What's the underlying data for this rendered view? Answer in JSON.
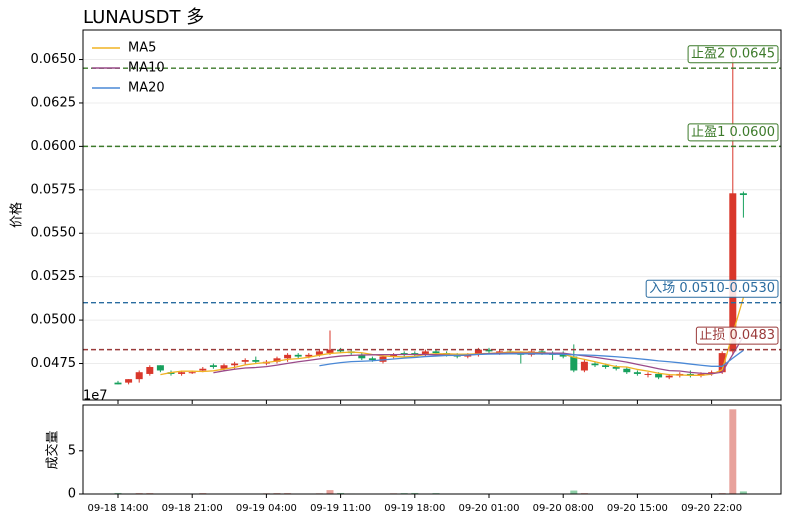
{
  "chart_data": [
    {
      "type": "candlestick",
      "title": "LUNAUSDT 多",
      "ylabel": "价格",
      "x": [
        "09-18 14:00",
        "09-18 15:00",
        "09-18 16:00",
        "09-18 17:00",
        "09-18 18:00",
        "09-18 19:00",
        "09-18 20:00",
        "09-18 21:00",
        "09-18 22:00",
        "09-18 23:00",
        "09-19 00:00",
        "09-19 01:00",
        "09-19 02:00",
        "09-19 03:00",
        "09-19 04:00",
        "09-19 05:00",
        "09-19 06:00",
        "09-19 07:00",
        "09-19 08:00",
        "09-19 09:00",
        "09-19 10:00",
        "09-19 11:00",
        "09-19 12:00",
        "09-19 13:00",
        "09-19 14:00",
        "09-19 15:00",
        "09-19 16:00",
        "09-19 17:00",
        "09-19 18:00",
        "09-19 19:00",
        "09-19 20:00",
        "09-19 21:00",
        "09-19 22:00",
        "09-19 23:00",
        "09-20 00:00",
        "09-20 01:00",
        "09-20 02:00",
        "09-20 03:00",
        "09-20 04:00",
        "09-20 05:00",
        "09-20 06:00",
        "09-20 07:00",
        "09-20 08:00",
        "09-20 09:00",
        "09-20 10:00",
        "09-20 11:00",
        "09-20 12:00",
        "09-20 13:00",
        "09-20 14:00",
        "09-20 15:00",
        "09-20 16:00",
        "09-20 17:00",
        "09-20 18:00",
        "09-20 19:00",
        "09-20 20:00",
        "09-20 21:00",
        "09-20 22:00",
        "09-20 23:00",
        "09-21 00:00",
        "09-21 01:00"
      ],
      "open": [
        0.0464,
        0.0464,
        0.0466,
        0.0469,
        0.0474,
        0.047,
        0.0469,
        0.047,
        0.0471,
        0.0474,
        0.0472,
        0.0474,
        0.0476,
        0.0477,
        0.0475,
        0.0476,
        0.0478,
        0.048,
        0.0479,
        0.048,
        0.0481,
        0.0483,
        0.0482,
        0.048,
        0.0478,
        0.0476,
        0.0479,
        0.0481,
        0.0481,
        0.048,
        0.0482,
        0.0481,
        0.048,
        0.0479,
        0.048,
        0.0483,
        0.0481,
        0.0482,
        0.0481,
        0.048,
        0.0482,
        0.0481,
        0.0481,
        0.0479,
        0.0471,
        0.0475,
        0.0474,
        0.0473,
        0.0472,
        0.047,
        0.0469,
        0.0469,
        0.0467,
        0.0468,
        0.0469,
        0.0468,
        0.0469,
        0.047,
        0.0482,
        0.0573
      ],
      "high": [
        0.0465,
        0.0466,
        0.0471,
        0.0474,
        0.0474,
        0.0471,
        0.0471,
        0.0471,
        0.0473,
        0.0475,
        0.0475,
        0.0476,
        0.0478,
        0.0479,
        0.0477,
        0.0479,
        0.0481,
        0.0481,
        0.0481,
        0.0483,
        0.0494,
        0.0484,
        0.0483,
        0.0481,
        0.0479,
        0.048,
        0.0481,
        0.0482,
        0.0482,
        0.0483,
        0.0483,
        0.0482,
        0.0481,
        0.0481,
        0.0484,
        0.0484,
        0.0483,
        0.0483,
        0.0482,
        0.0483,
        0.0483,
        0.0482,
        0.0482,
        0.0486,
        0.0477,
        0.0476,
        0.0475,
        0.0474,
        0.0473,
        0.0471,
        0.047,
        0.047,
        0.0469,
        0.047,
        0.0471,
        0.047,
        0.0471,
        0.0482,
        0.0657,
        0.0574
      ],
      "low": [
        0.0463,
        0.0463,
        0.0464,
        0.0468,
        0.047,
        0.0468,
        0.0468,
        0.0469,
        0.047,
        0.0472,
        0.0471,
        0.0472,
        0.0474,
        0.0475,
        0.0474,
        0.0475,
        0.0476,
        0.0478,
        0.0478,
        0.0479,
        0.048,
        0.0481,
        0.048,
        0.0477,
        0.0476,
        0.0475,
        0.0478,
        0.0479,
        0.0479,
        0.0479,
        0.048,
        0.0479,
        0.0478,
        0.0478,
        0.0479,
        0.0481,
        0.048,
        0.0481,
        0.0475,
        0.0479,
        0.048,
        0.0477,
        0.0478,
        0.047,
        0.047,
        0.0473,
        0.0472,
        0.0471,
        0.0469,
        0.0468,
        0.0467,
        0.0466,
        0.0466,
        0.0467,
        0.0467,
        0.0467,
        0.0468,
        0.0469,
        0.048,
        0.0559
      ],
      "close": [
        0.0463,
        0.0466,
        0.047,
        0.0473,
        0.0471,
        0.0469,
        0.047,
        0.047,
        0.0472,
        0.0473,
        0.0474,
        0.0475,
        0.0477,
        0.0476,
        0.0476,
        0.0478,
        0.048,
        0.0479,
        0.048,
        0.0482,
        0.0483,
        0.0482,
        0.0481,
        0.0478,
        0.0477,
        0.0479,
        0.048,
        0.048,
        0.048,
        0.0482,
        0.0481,
        0.048,
        0.0479,
        0.048,
        0.0483,
        0.0482,
        0.0482,
        0.0481,
        0.048,
        0.0482,
        0.0481,
        0.048,
        0.0479,
        0.0471,
        0.0476,
        0.0474,
        0.0473,
        0.0472,
        0.047,
        0.0469,
        0.0469,
        0.0467,
        0.0468,
        0.0469,
        0.0468,
        0.0469,
        0.047,
        0.0481,
        0.0573,
        0.0572
      ],
      "up_color": "#d9372b",
      "down_color": "#17a05d",
      "series": [
        {
          "name": "MA5",
          "color": "#f0b323",
          "values": [
            null,
            null,
            null,
            null,
            0.04686,
            0.04698,
            0.04706,
            0.04706,
            0.04704,
            0.04708,
            0.04718,
            0.04728,
            0.04742,
            0.0475,
            0.04756,
            0.04764,
            0.04774,
            0.04778,
            0.04786,
            0.04798,
            0.04808,
            0.04812,
            0.04816,
            0.04812,
            0.04802,
            0.04794,
            0.0479,
            0.04788,
            0.04792,
            0.04802,
            0.04806,
            0.04806,
            0.04804,
            0.04804,
            0.04806,
            0.04808,
            0.04812,
            0.04816,
            0.04816,
            0.04814,
            0.04812,
            0.04808,
            0.04804,
            0.04786,
            0.04774,
            0.0476,
            0.04746,
            0.04732,
            0.0473,
            0.04716,
            0.04706,
            0.04694,
            0.04686,
            0.04684,
            0.04682,
            0.04682,
            0.04688,
            0.04714,
            0.04922,
            0.0513
          ]
        },
        {
          "name": "MA10",
          "color": "#9a4a8a",
          "values": [
            null,
            null,
            null,
            null,
            null,
            null,
            null,
            null,
            null,
            0.04697,
            0.04708,
            0.04717,
            0.04724,
            0.04727,
            0.04732,
            0.04741,
            0.04751,
            0.0476,
            0.04768,
            0.04777,
            0.04786,
            0.04793,
            0.04797,
            0.04799,
            0.048,
            0.04801,
            0.04801,
            0.04802,
            0.04802,
            0.04802,
            0.048,
            0.04798,
            0.04796,
            0.04798,
            0.04804,
            0.04807,
            0.04809,
            0.0481,
            0.0481,
            0.0481,
            0.0481,
            0.0481,
            0.0481,
            0.04801,
            0.04794,
            0.04786,
            0.04777,
            0.04768,
            0.04758,
            0.04745,
            0.04733,
            0.0472,
            0.04709,
            0.04707,
            0.04699,
            0.04694,
            0.04691,
            0.047,
            0.04803,
            0.04906
          ]
        },
        {
          "name": "MA20",
          "color": "#4a88d6",
          "values": [
            null,
            null,
            null,
            null,
            null,
            null,
            null,
            null,
            null,
            null,
            null,
            null,
            null,
            null,
            null,
            null,
            null,
            null,
            null,
            0.04737,
            0.04747,
            0.04755,
            0.04761,
            0.04763,
            0.04766,
            0.04771,
            0.04776,
            0.04781,
            0.04785,
            0.0479,
            0.04793,
            0.04796,
            0.04797,
            0.04799,
            0.04802,
            0.04804,
            0.04805,
            0.04806,
            0.04806,
            0.04806,
            0.04805,
            0.04804,
            0.04803,
            0.048,
            0.04799,
            0.04797,
            0.04793,
            0.04789,
            0.04784,
            0.04778,
            0.04772,
            0.04765,
            0.0476,
            0.04754,
            0.04747,
            0.0474,
            0.04734,
            0.04734,
            0.04781,
            0.04826
          ]
        }
      ],
      "ylim": [
        0.0454,
        0.0667
      ],
      "yticks": [
        0.0475,
        {
          "value": 0.05,
          "label": "0.0500"
        },
        0.0525,
        {
          "value": 0.055,
          "label": "0.0550"
        },
        0.0575,
        {
          "value": 0.06,
          "label": "0.0600"
        },
        0.0625,
        {
          "value": 0.065,
          "label": "0.0650"
        }
      ],
      "grid": true,
      "legend": "upper left",
      "levels": [
        {
          "label": "止盈2 0.0645",
          "value": 0.0645,
          "color": "#3c7a2a"
        },
        {
          "label": "止盈1 0.0600",
          "value": 0.06,
          "color": "#3c7a2a"
        },
        {
          "label": "入场 0.0510-0.0530",
          "value": 0.051,
          "color": "#2a6ca0"
        },
        {
          "label": "止损 0.0483",
          "value": 0.0483,
          "color": "#9a3a3a"
        }
      ]
    },
    {
      "type": "bar",
      "ylabel": "成交量",
      "offset_label": "1e7",
      "values": [
        0.12,
        0.05,
        0.1,
        0.1,
        0.04,
        0.03,
        0.04,
        0.03,
        0.1,
        0.04,
        0.03,
        0.03,
        0.03,
        0.03,
        0.08,
        0.1,
        0.1,
        0.05,
        0.05,
        0.08,
        0.45,
        0.12,
        0.06,
        0.05,
        0.05,
        0.04,
        0.08,
        0.1,
        0.12,
        0.05,
        0.1,
        0.04,
        0.03,
        0.03,
        0.05,
        0.04,
        0.03,
        0.03,
        0.05,
        0.04,
        0.03,
        0.03,
        0.04,
        0.4,
        0.1,
        0.05,
        0.04,
        0.05,
        0.04,
        0.04,
        0.03,
        0.04,
        0.03,
        0.03,
        0.04,
        0.03,
        0.05,
        0.1,
        9.8,
        0.3
      ],
      "up_color": "#e8a29c",
      "down_color": "#8fd0a8",
      "ylim": [
        0,
        10.3
      ],
      "yticks": [
        0,
        5
      ]
    }
  ]
}
